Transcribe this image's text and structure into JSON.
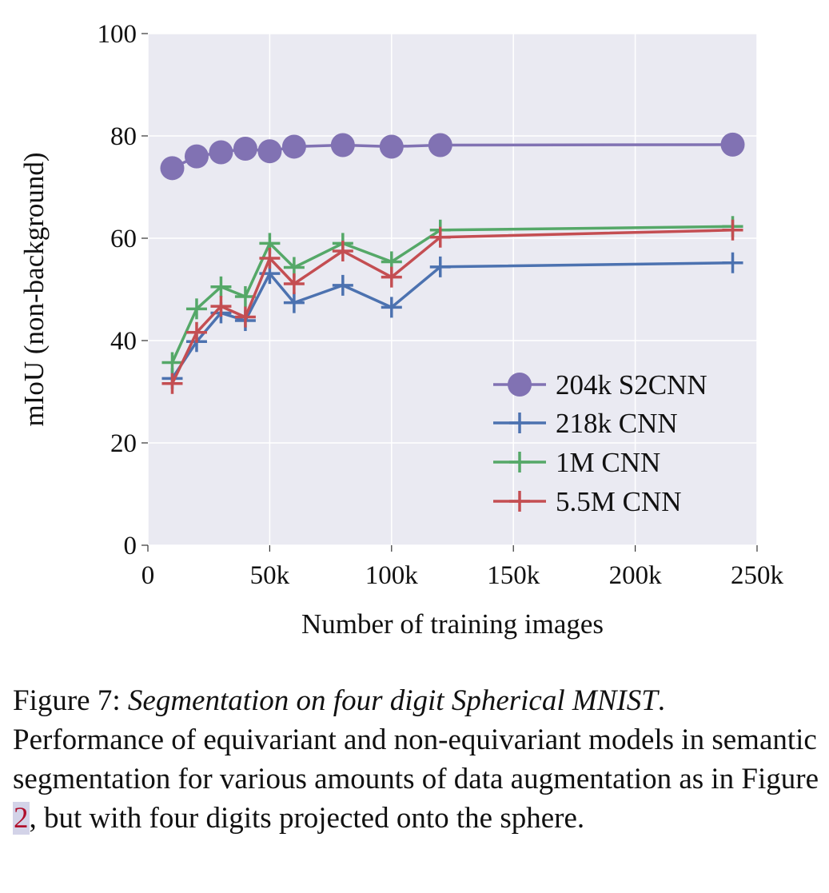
{
  "chart_data": {
    "type": "line",
    "xlabel": "Number of training images",
    "ylabel": "mIoU (non-background)",
    "xlim": [
      0,
      250000
    ],
    "ylim": [
      0,
      100
    ],
    "xticks": [
      0,
      50000,
      100000,
      150000,
      200000,
      250000
    ],
    "xtick_labels": [
      "0",
      "50k",
      "100k",
      "150k",
      "200k",
      "250k"
    ],
    "yticks": [
      0,
      20,
      40,
      60,
      80,
      100
    ],
    "ytick_labels": [
      "0",
      "20",
      "40",
      "60",
      "80",
      "100"
    ],
    "grid": true,
    "background": "#eaeaf2",
    "legend_position": "lower-right",
    "series": [
      {
        "name": "204k S2CNN",
        "color": "#8172b3",
        "marker": "circle",
        "x": [
          10000,
          20000,
          30000,
          40000,
          50000,
          60000,
          80000,
          100000,
          120000,
          240000
        ],
        "y": [
          73.7,
          76.0,
          76.8,
          77.5,
          77.0,
          77.9,
          78.2,
          77.9,
          78.2,
          78.3
        ]
      },
      {
        "name": "218k CNN",
        "color": "#4c72b0",
        "marker": "plus",
        "x": [
          10000,
          20000,
          30000,
          40000,
          50000,
          60000,
          80000,
          100000,
          120000,
          240000
        ],
        "y": [
          32.6,
          39.8,
          45.4,
          43.9,
          53.1,
          47.4,
          50.8,
          46.5,
          54.4,
          55.2
        ]
      },
      {
        "name": "1M CNN",
        "color": "#55a868",
        "marker": "plus",
        "x": [
          10000,
          20000,
          30000,
          40000,
          50000,
          60000,
          80000,
          100000,
          120000,
          240000
        ],
        "y": [
          35.7,
          46.2,
          50.5,
          48.6,
          59.0,
          54.3,
          59.0,
          55.4,
          61.6,
          62.3
        ]
      },
      {
        "name": "5.5M CNN",
        "color": "#c44e52",
        "marker": "plus",
        "x": [
          10000,
          20000,
          30000,
          40000,
          50000,
          60000,
          80000,
          100000,
          120000,
          240000
        ],
        "y": [
          31.6,
          41.6,
          46.7,
          44.6,
          56.1,
          51.1,
          57.5,
          52.4,
          60.2,
          61.6
        ]
      }
    ]
  },
  "caption": {
    "label": "Figure 7:",
    "title": "Segmentation on four digit Spherical MNIST",
    "title_end": ".",
    "text_before_ref": "Performance of equivariant and non-equivariant models in semantic segmentation for various amounts of data augmentation as in Figure ",
    "ref": "2",
    "text_after_ref": ", but with four digits projected onto the sphere."
  }
}
